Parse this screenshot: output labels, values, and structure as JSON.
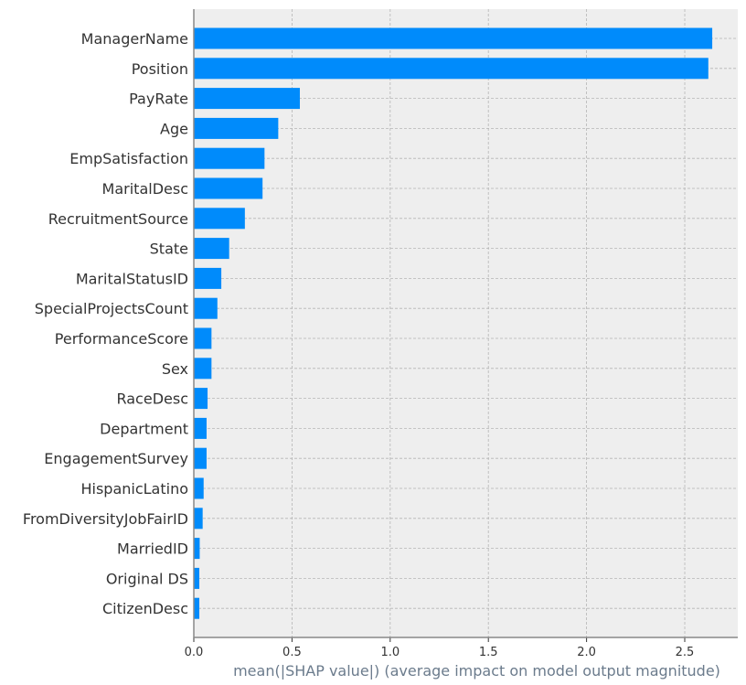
{
  "chart_data": {
    "type": "bar",
    "orientation": "horizontal",
    "categories": [
      "ManagerName",
      "Position",
      "PayRate",
      "Age",
      "EmpSatisfaction",
      "MaritalDesc",
      "RecruitmentSource",
      "State",
      "MaritalStatusID",
      "SpecialProjectsCount",
      "PerformanceScore",
      "Sex",
      "RaceDesc",
      "Department",
      "EngagementSurvey",
      "HispanicLatino",
      "FromDiversityJobFairID",
      "MarriedID",
      "Original DS",
      "CitizenDesc"
    ],
    "values": [
      2.64,
      2.62,
      0.54,
      0.43,
      0.36,
      0.35,
      0.26,
      0.18,
      0.14,
      0.12,
      0.09,
      0.09,
      0.07,
      0.065,
      0.065,
      0.05,
      0.045,
      0.03,
      0.028,
      0.028
    ],
    "xlabel": "mean(|SHAP value|) (average impact on model output magnitude)",
    "ylabel": "",
    "title": "",
    "xlim": [
      0,
      2.77
    ],
    "xticks": [
      "0.0",
      "0.5",
      "1.0",
      "1.5",
      "2.0",
      "2.5"
    ],
    "xtick_values": [
      0,
      0.5,
      1.0,
      1.5,
      2.0,
      2.5
    ],
    "grid": true,
    "bar_color": "#008bfb",
    "background_color": "#eeeeee"
  }
}
